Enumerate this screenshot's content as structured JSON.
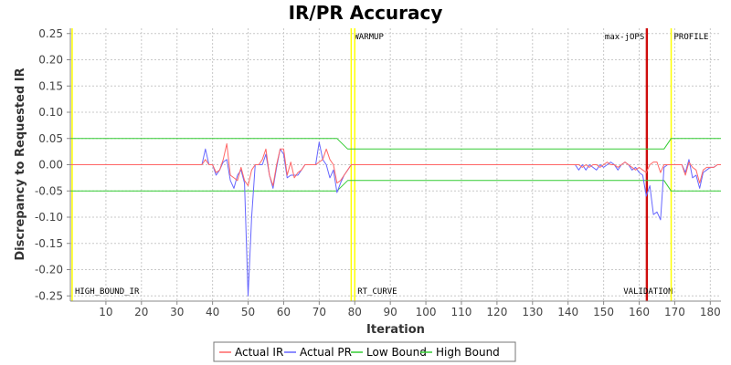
{
  "chart_data": {
    "type": "line",
    "title": "IR/PR Accuracy",
    "xlabel": "Iteration",
    "ylabel": "Discrepancy to Requested IR",
    "xlim": [
      0,
      183
    ],
    "ylim": [
      -0.26,
      0.26
    ],
    "x_ticks": [
      10,
      20,
      30,
      40,
      50,
      60,
      70,
      80,
      90,
      100,
      110,
      120,
      130,
      140,
      150,
      160,
      170,
      180
    ],
    "y_ticks": [
      0.25,
      0.2,
      0.15,
      0.1,
      0.05,
      0.0,
      -0.05,
      -0.1,
      -0.15,
      -0.2,
      -0.25
    ],
    "y_tick_labels": [
      "0.25",
      "0.20",
      "0.15",
      "0.10",
      "0.05",
      "0.00",
      "-0.05",
      "-0.10",
      "-0.15",
      "-0.20",
      "-0.25"
    ],
    "grid": true,
    "legend_position": "bottom",
    "markers": [
      {
        "label": "HIGH_BOUND_IR",
        "x": 0.5,
        "color": "#ffff00",
        "label_pos": "bottom"
      },
      {
        "label": "WARMUP",
        "x": 79,
        "color": "#ffff00",
        "label_pos": "top"
      },
      {
        "label": "RT_CURVE",
        "x": 80,
        "color": "#ffff00",
        "label_pos": "bottom"
      },
      {
        "label": "max-jOPS",
        "x": 162,
        "color": "#cc0000",
        "label_pos": "top-left"
      },
      {
        "label": "VALIDATION",
        "x": 162.3,
        "color": "#cc0000",
        "label_pos": "bottom-left"
      },
      {
        "label": "PROFILE",
        "x": 169,
        "color": "#ffff00",
        "label_pos": "top"
      }
    ],
    "series": [
      {
        "name": "Actual IR",
        "color": "#ff6666",
        "points": [
          [
            0,
            0
          ],
          [
            37,
            0
          ],
          [
            38,
            0.01
          ],
          [
            39,
            0
          ],
          [
            40,
            0
          ],
          [
            41,
            -0.015
          ],
          [
            42,
            -0.01
          ],
          [
            43,
            0.01
          ],
          [
            44,
            0.04
          ],
          [
            45,
            -0.02
          ],
          [
            46,
            -0.025
          ],
          [
            47,
            -0.03
          ],
          [
            48,
            -0.005
          ],
          [
            49,
            -0.03
          ],
          [
            50,
            -0.04
          ],
          [
            51,
            -0.01
          ],
          [
            52,
            0
          ],
          [
            53,
            0
          ],
          [
            54,
            0.01
          ],
          [
            55,
            0.03
          ],
          [
            56,
            -0.02
          ],
          [
            57,
            -0.04
          ],
          [
            58,
            0
          ],
          [
            59,
            0.03
          ],
          [
            60,
            0.03
          ],
          [
            61,
            -0.02
          ],
          [
            62,
            0.005
          ],
          [
            63,
            -0.025
          ],
          [
            64,
            -0.015
          ],
          [
            65,
            -0.01
          ],
          [
            66,
            0
          ],
          [
            67,
            0
          ],
          [
            68,
            0
          ],
          [
            69,
            0
          ],
          [
            70,
            0.005
          ],
          [
            71,
            0.01
          ],
          [
            72,
            0.03
          ],
          [
            73,
            0.01
          ],
          [
            74,
            0
          ],
          [
            75,
            -0.035
          ],
          [
            76,
            -0.03
          ],
          [
            77,
            -0.02
          ],
          [
            78,
            -0.01
          ],
          [
            79,
            0
          ],
          [
            80,
            0
          ],
          [
            142,
            0
          ],
          [
            143,
            0
          ],
          [
            144,
            -0.005
          ],
          [
            145,
            0
          ],
          [
            146,
            -0.005
          ],
          [
            147,
            0
          ],
          [
            148,
            0
          ],
          [
            149,
            -0.005
          ],
          [
            150,
            0
          ],
          [
            151,
            0.005
          ],
          [
            152,
            0
          ],
          [
            153,
            0
          ],
          [
            154,
            -0.005
          ],
          [
            155,
            0
          ],
          [
            156,
            0.005
          ],
          [
            157,
            0
          ],
          [
            158,
            -0.005
          ],
          [
            159,
            -0.01
          ],
          [
            160,
            -0.005
          ],
          [
            161,
            -0.01
          ],
          [
            162,
            -0.015
          ],
          [
            163,
            0
          ],
          [
            164,
            0.005
          ],
          [
            165,
            0.005
          ],
          [
            166,
            -0.015
          ],
          [
            167,
            0
          ],
          [
            168,
            0
          ],
          [
            169,
            0
          ],
          [
            170,
            0
          ],
          [
            171,
            0
          ],
          [
            172,
            0
          ],
          [
            173,
            -0.02
          ],
          [
            174,
            0.005
          ],
          [
            175,
            -0.005
          ],
          [
            176,
            -0.01
          ],
          [
            177,
            -0.035
          ],
          [
            178,
            -0.01
          ],
          [
            179,
            -0.005
          ],
          [
            180,
            -0.005
          ],
          [
            181,
            -0.005
          ],
          [
            182,
            0
          ],
          [
            183,
            0
          ]
        ]
      },
      {
        "name": "Actual PR",
        "color": "#6666ff",
        "points": [
          [
            0,
            0
          ],
          [
            37,
            0
          ],
          [
            38,
            0.03
          ],
          [
            39,
            0
          ],
          [
            40,
            0
          ],
          [
            41,
            -0.02
          ],
          [
            42,
            -0.01
          ],
          [
            43,
            0.005
          ],
          [
            44,
            0.01
          ],
          [
            45,
            -0.03
          ],
          [
            46,
            -0.045
          ],
          [
            47,
            -0.02
          ],
          [
            48,
            -0.01
          ],
          [
            49,
            -0.035
          ],
          [
            50,
            -0.25
          ],
          [
            51,
            -0.1
          ],
          [
            52,
            0
          ],
          [
            53,
            0
          ],
          [
            54,
            0
          ],
          [
            55,
            0.02
          ],
          [
            56,
            -0.02
          ],
          [
            57,
            -0.045
          ],
          [
            58,
            -0.005
          ],
          [
            59,
            0.03
          ],
          [
            60,
            0.02
          ],
          [
            61,
            -0.025
          ],
          [
            62,
            -0.02
          ],
          [
            63,
            -0.02
          ],
          [
            64,
            -0.02
          ],
          [
            65,
            -0.01
          ],
          [
            66,
            0
          ],
          [
            67,
            0
          ],
          [
            68,
            0
          ],
          [
            69,
            0
          ],
          [
            70,
            0.043
          ],
          [
            71,
            0.01
          ],
          [
            72,
            0
          ],
          [
            73,
            -0.025
          ],
          [
            74,
            -0.01
          ],
          [
            75,
            -0.053
          ],
          [
            76,
            -0.035
          ],
          [
            77,
            -0.02
          ],
          [
            78,
            -0.01
          ],
          [
            79,
            0
          ],
          [
            80,
            0
          ],
          [
            142,
            0
          ],
          [
            143,
            -0.01
          ],
          [
            144,
            0
          ],
          [
            145,
            -0.01
          ],
          [
            146,
            0
          ],
          [
            147,
            -0.005
          ],
          [
            148,
            -0.01
          ],
          [
            149,
            0
          ],
          [
            150,
            -0.005
          ],
          [
            151,
            0
          ],
          [
            152,
            0.005
          ],
          [
            153,
            0
          ],
          [
            154,
            -0.01
          ],
          [
            155,
            0
          ],
          [
            156,
            0.005
          ],
          [
            157,
            0
          ],
          [
            158,
            -0.01
          ],
          [
            159,
            -0.005
          ],
          [
            160,
            -0.015
          ],
          [
            161,
            -0.02
          ],
          [
            162,
            -0.06
          ],
          [
            163,
            -0.04
          ],
          [
            164,
            -0.095
          ],
          [
            165,
            -0.09
          ],
          [
            166,
            -0.105
          ],
          [
            167,
            -0.005
          ],
          [
            168,
            0
          ],
          [
            169,
            0
          ],
          [
            170,
            0
          ],
          [
            171,
            0
          ],
          [
            172,
            0
          ],
          [
            173,
            -0.015
          ],
          [
            174,
            0.01
          ],
          [
            175,
            -0.025
          ],
          [
            176,
            -0.02
          ],
          [
            177,
            -0.045
          ],
          [
            178,
            -0.015
          ],
          [
            179,
            -0.01
          ],
          [
            180,
            -0.005
          ],
          [
            181,
            -0.005
          ],
          [
            182,
            0
          ],
          [
            183,
            0
          ]
        ]
      },
      {
        "name": "Low Bound",
        "color": "#33cc33",
        "points": [
          [
            0,
            -0.05
          ],
          [
            75,
            -0.05
          ],
          [
            78,
            -0.03
          ],
          [
            167,
            -0.03
          ],
          [
            169,
            -0.05
          ],
          [
            183,
            -0.05
          ]
        ]
      },
      {
        "name": "High Bound",
        "color": "#33cc33",
        "points": [
          [
            0,
            0.05
          ],
          [
            75,
            0.05
          ],
          [
            78,
            0.03
          ],
          [
            167,
            0.03
          ],
          [
            169,
            0.05
          ],
          [
            183,
            0.05
          ]
        ]
      }
    ]
  }
}
